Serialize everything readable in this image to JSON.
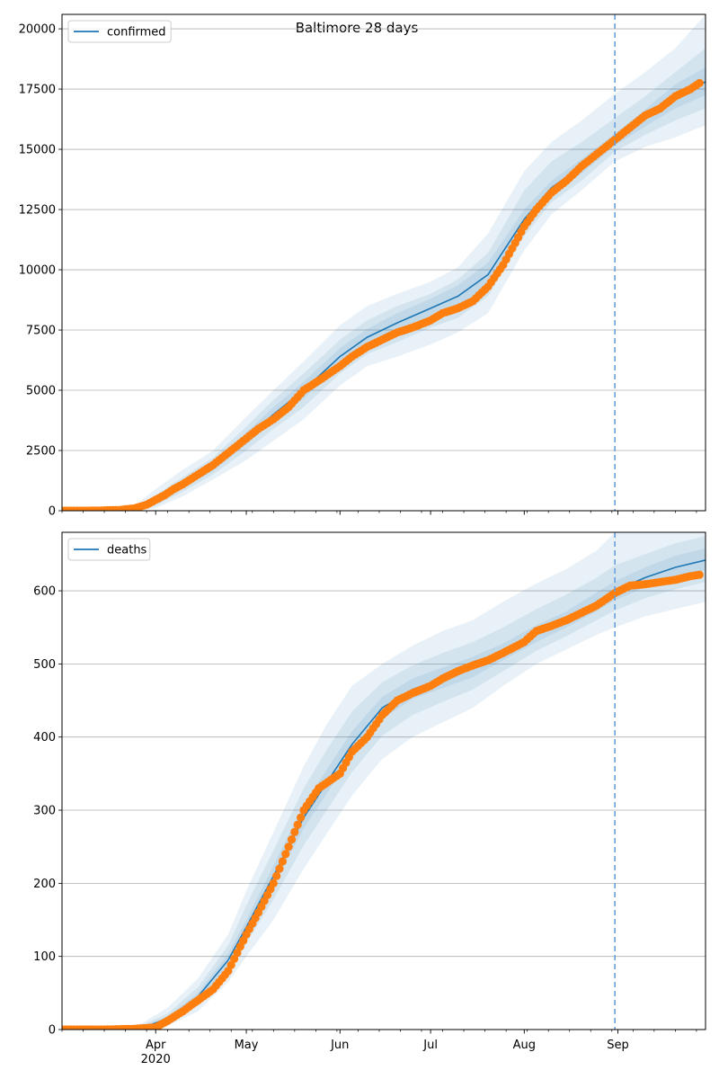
{
  "title": "Baltimore 28 days",
  "colors": {
    "model_line": "#1f77b4",
    "observed": "#ff7f0e",
    "band": "#1f77b4",
    "grid": "#b0b0b0",
    "vline": "#6a9fd8"
  },
  "x_axis": {
    "start": "2020-03-01",
    "end": "2020-09-30",
    "month_labels": [
      {
        "date": "2020-04-01",
        "label": "Apr",
        "sublabel": "2020"
      },
      {
        "date": "2020-05-01",
        "label": "May",
        "sublabel": ""
      },
      {
        "date": "2020-06-01",
        "label": "Jun",
        "sublabel": ""
      },
      {
        "date": "2020-07-01",
        "label": "Jul",
        "sublabel": ""
      },
      {
        "date": "2020-08-01",
        "label": "Aug",
        "sublabel": ""
      },
      {
        "date": "2020-09-01",
        "label": "Sep",
        "sublabel": ""
      }
    ],
    "forecast_start": "2020-08-31"
  },
  "chart_data": [
    {
      "type": "line",
      "legend": "confirmed",
      "legend_position": "top-left",
      "grid": "y",
      "ylim": [
        0,
        20600
      ],
      "yticks": [
        0,
        2500,
        5000,
        7500,
        10000,
        12500,
        15000,
        17500,
        20000
      ],
      "model": {
        "dates": [
          "2020-03-01",
          "2020-03-15",
          "2020-03-25",
          "2020-04-01",
          "2020-04-10",
          "2020-04-20",
          "2020-05-01",
          "2020-05-10",
          "2020-05-20",
          "2020-06-01",
          "2020-06-10",
          "2020-06-20",
          "2020-07-01",
          "2020-07-10",
          "2020-07-20",
          "2020-08-01",
          "2020-08-10",
          "2020-08-20",
          "2020-08-31",
          "2020-09-10",
          "2020-09-20",
          "2020-09-30"
        ],
        "values": [
          0,
          0,
          60,
          400,
          1100,
          1800,
          3000,
          4000,
          5000,
          6400,
          7200,
          7800,
          8400,
          8900,
          9800,
          12100,
          13400,
          14300,
          15400,
          16300,
          17200,
          17800
        ],
        "bands": [
          {
            "lower": [
              0,
              0,
              0,
              100,
              600,
              1300,
              2100,
              2900,
              3800,
              5200,
              6000,
              6400,
              6900,
              7400,
              8200,
              10800,
              12300,
              13300,
              14500,
              15100,
              15500,
              16000
            ],
            "upper": [
              0,
              0,
              200,
              900,
              1700,
              2500,
              3900,
              5000,
              6200,
              7700,
              8500,
              9000,
              9500,
              10100,
              11500,
              14100,
              15300,
              16200,
              17300,
              18200,
              19200,
              20600
            ]
          },
          {
            "lower": [
              0,
              0,
              20,
              200,
              800,
              1500,
              2500,
              3400,
              4300,
              5700,
              6500,
              7000,
              7600,
              8000,
              8900,
              11400,
              12800,
              13700,
              14900,
              15600,
              16200,
              16700
            ],
            "upper": [
              0,
              0,
              120,
              650,
              1400,
              2200,
              3500,
              4600,
              5700,
              7100,
              7900,
              8500,
              9000,
              9600,
              10700,
              13300,
              14500,
              15300,
              16300,
              17200,
              18200,
              19200
            ]
          },
          {
            "lower": [
              0,
              0,
              40,
              300,
              950,
              1650,
              2750,
              3700,
              4650,
              6050,
              6850,
              7400,
              8000,
              8450,
              9300,
              11750,
              13100,
              14000,
              15150,
              15950,
              16700,
              17250
            ],
            "upper": [
              0,
              0,
              90,
              520,
              1250,
              2000,
              3250,
              4300,
              5350,
              6750,
              7550,
              8200,
              8800,
              9350,
              10300,
              12500,
              13700,
              14600,
              15650,
              16650,
              17700,
              18400
            ]
          }
        ]
      },
      "observed": {
        "dates": [
          "2020-03-01",
          "2020-03-10",
          "2020-03-20",
          "2020-03-25",
          "2020-03-29",
          "2020-04-01",
          "2020-04-04",
          "2020-04-07",
          "2020-04-10",
          "2020-04-15",
          "2020-04-20",
          "2020-04-25",
          "2020-05-01",
          "2020-05-05",
          "2020-05-10",
          "2020-05-15",
          "2020-05-20",
          "2020-05-25",
          "2020-06-01",
          "2020-06-05",
          "2020-06-10",
          "2020-06-15",
          "2020-06-20",
          "2020-06-25",
          "2020-07-01",
          "2020-07-05",
          "2020-07-10",
          "2020-07-15",
          "2020-07-20",
          "2020-07-25",
          "2020-08-01",
          "2020-08-05",
          "2020-08-10",
          "2020-08-15",
          "2020-08-20",
          "2020-08-25",
          "2020-08-31",
          "2020-09-05",
          "2020-09-10",
          "2020-09-15",
          "2020-09-20",
          "2020-09-25",
          "2020-09-28"
        ],
        "values": [
          0,
          0,
          30,
          100,
          250,
          450,
          650,
          900,
          1100,
          1500,
          1900,
          2400,
          3000,
          3400,
          3800,
          4300,
          5000,
          5400,
          6000,
          6400,
          6800,
          7100,
          7400,
          7600,
          7900,
          8200,
          8400,
          8700,
          9300,
          10200,
          11800,
          12500,
          13200,
          13700,
          14300,
          14800,
          15400,
          15900,
          16400,
          16700,
          17200,
          17500,
          17750
        ]
      }
    },
    {
      "type": "line",
      "legend": "deaths",
      "legend_position": "top-left",
      "grid": "y",
      "ylim": [
        0,
        680
      ],
      "yticks": [
        0,
        100,
        200,
        300,
        400,
        500,
        600
      ],
      "model": {
        "dates": [
          "2020-03-01",
          "2020-03-20",
          "2020-03-28",
          "2020-04-05",
          "2020-04-15",
          "2020-04-25",
          "2020-05-01",
          "2020-05-10",
          "2020-05-20",
          "2020-05-28",
          "2020-06-05",
          "2020-06-15",
          "2020-06-25",
          "2020-07-05",
          "2020-07-15",
          "2020-07-25",
          "2020-08-05",
          "2020-08-15",
          "2020-08-25",
          "2020-08-31",
          "2020-09-10",
          "2020-09-20",
          "2020-09-30"
        ],
        "values": [
          0,
          0,
          3,
          15,
          45,
          95,
          140,
          210,
          290,
          340,
          390,
          440,
          465,
          480,
          495,
          515,
          540,
          560,
          585,
          600,
          618,
          632,
          642
        ],
        "bands": [
          {
            "lower": [
              0,
              0,
              0,
              5,
              25,
              65,
              100,
              150,
              220,
              270,
              320,
              370,
              400,
              420,
              440,
              470,
              500,
              520,
              540,
              550,
              565,
              575,
              585
            ],
            "upper": [
              0,
              0,
              10,
              30,
              70,
              130,
              190,
              270,
              360,
              420,
              470,
              500,
              525,
              545,
              560,
              585,
              610,
              630,
              655,
              680,
              682,
              682,
              682
            ]
          },
          {
            "lower": [
              0,
              0,
              1,
              8,
              33,
              78,
              118,
              178,
              252,
              302,
              352,
              402,
              430,
              448,
              465,
              490,
              518,
              538,
              560,
              573,
              590,
              602,
              612
            ],
            "upper": [
              0,
              0,
              7,
              22,
              58,
              115,
              170,
              245,
              330,
              385,
              435,
              475,
              498,
              515,
              530,
              550,
              575,
              595,
              618,
              635,
              650,
              665,
              675
            ]
          },
          {
            "lower": [
              0,
              0,
              2,
              12,
              40,
              88,
              132,
              198,
              275,
              325,
              375,
              425,
              452,
              467,
              482,
              505,
              530,
              550,
              572,
              587,
              605,
              618,
              628
            ],
            "upper": [
              0,
              0,
              5,
              18,
              50,
              104,
              150,
              224,
              308,
              358,
              408,
              455,
              480,
              495,
              510,
              528,
              553,
              572,
              598,
              613,
              632,
              648,
              658
            ]
          }
        ]
      },
      "observed": {
        "dates": [
          "2020-03-01",
          "2020-03-15",
          "2020-03-25",
          "2020-04-01",
          "2020-04-05",
          "2020-04-10",
          "2020-04-15",
          "2020-04-20",
          "2020-04-25",
          "2020-05-01",
          "2020-05-05",
          "2020-05-10",
          "2020-05-15",
          "2020-05-20",
          "2020-05-25",
          "2020-06-01",
          "2020-06-05",
          "2020-06-10",
          "2020-06-15",
          "2020-06-20",
          "2020-06-25",
          "2020-07-01",
          "2020-07-05",
          "2020-07-10",
          "2020-07-15",
          "2020-07-20",
          "2020-07-25",
          "2020-08-01",
          "2020-08-05",
          "2020-08-10",
          "2020-08-15",
          "2020-08-20",
          "2020-08-25",
          "2020-08-31",
          "2020-09-05",
          "2020-09-10",
          "2020-09-15",
          "2020-09-20",
          "2020-09-25",
          "2020-09-28"
        ],
        "values": [
          0,
          0,
          1,
          3,
          12,
          25,
          40,
          55,
          80,
          130,
          160,
          200,
          250,
          300,
          330,
          350,
          380,
          400,
          430,
          450,
          460,
          470,
          480,
          490,
          498,
          505,
          515,
          530,
          545,
          552,
          560,
          570,
          580,
          597,
          607,
          609,
          612,
          615,
          620,
          622
        ]
      }
    }
  ]
}
